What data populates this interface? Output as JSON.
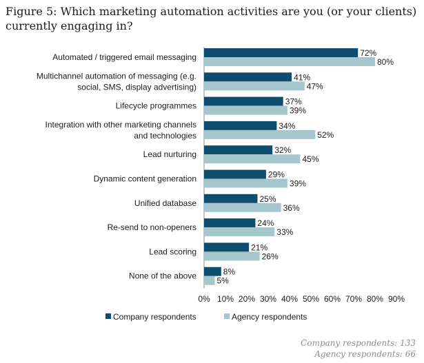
{
  "chart_data": {
    "type": "bar",
    "orientation": "horizontal",
    "title": "Figure 5: Which marketing automation activities are you (or your clients) currently engaging in?",
    "categories": [
      [
        "Automated / triggered email messaging"
      ],
      [
        "Multichannel automation of messaging (e.g.",
        "social, SMS, display advertising)"
      ],
      [
        "Lifecycle programmes"
      ],
      [
        "Integration with other marketing channels",
        "and technologies"
      ],
      [
        "Lead nurturing"
      ],
      [
        "Dynamic content generation"
      ],
      [
        "Unified database"
      ],
      [
        "Re-send to non-openers"
      ],
      [
        "Lead scoring"
      ],
      [
        "None of the above"
      ]
    ],
    "series": [
      {
        "name": "Company respondents",
        "color": "#0f4d6e",
        "values": [
          72,
          41,
          37,
          34,
          32,
          29,
          25,
          24,
          21,
          8
        ]
      },
      {
        "name": "Agency respondents",
        "color": "#a4c6cc",
        "values": [
          80,
          47,
          39,
          52,
          45,
          39,
          36,
          33,
          26,
          5
        ]
      }
    ],
    "value_suffix": "%",
    "xlim": [
      0,
      90
    ],
    "xticks": [
      "0%",
      "10%",
      "20%",
      "30%",
      "40%",
      "50%",
      "60%",
      "70%",
      "80%",
      "90%"
    ],
    "grid": false,
    "legend_position": "bottom"
  },
  "notes": {
    "company_count": "Company respondents: 133",
    "agency_count": "Agency respondents: 66"
  }
}
